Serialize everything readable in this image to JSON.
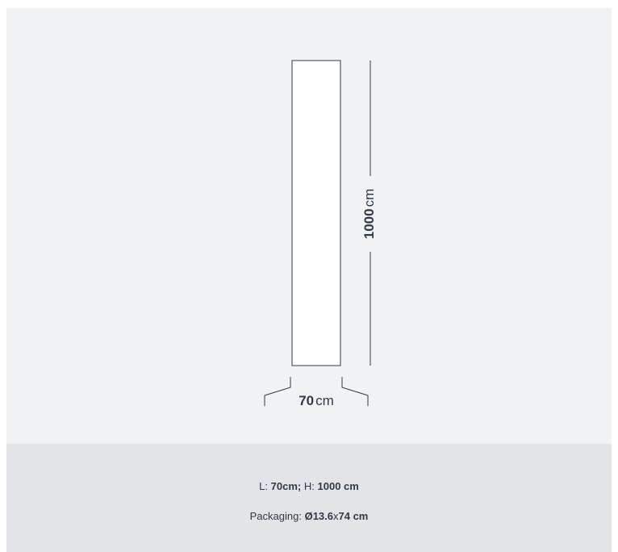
{
  "diagram": {
    "width": {
      "value": "70",
      "unit": "cm"
    },
    "height": {
      "value": "1000",
      "unit": "cm"
    }
  },
  "footer": {
    "dimensions": {
      "length_label": "L",
      "colon1": ":",
      "length": "70cm",
      "separator": ";",
      "height_label": "H",
      "colon2": ":",
      "height": "1000 cm"
    },
    "packaging": {
      "label": "Packaging",
      "colon": ":",
      "diameter": "Ø13.6",
      "times": "x",
      "length": "74 cm"
    }
  }
}
